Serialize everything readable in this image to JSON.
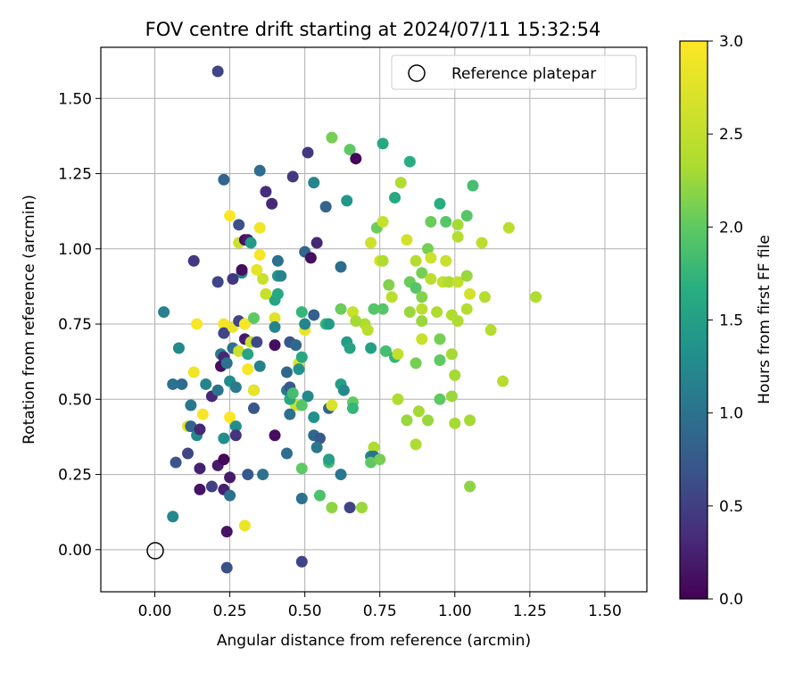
{
  "chart_data": {
    "type": "scatter",
    "title": "FOV centre drift starting at 2024/07/11 15:32:54",
    "xlabel": "Angular distance from reference (arcmin)",
    "ylabel": "Rotation from reference (arcmin)",
    "xlim": [
      -0.18,
      1.64
    ],
    "ylim": [
      -0.14,
      1.67
    ],
    "x_ticks": [
      "0.00",
      "0.25",
      "0.50",
      "0.75",
      "1.00",
      "1.25",
      "1.50"
    ],
    "y_ticks": [
      "0.00",
      "0.25",
      "0.50",
      "0.75",
      "1.00",
      "1.25",
      "1.50"
    ],
    "grid": true,
    "legend": {
      "position": "top-right",
      "label": "Reference platepar"
    },
    "reference_point": {
      "x": 0.0,
      "y": 0.0
    },
    "colorbar": {
      "label": "Hours from first FF file",
      "range": [
        0.0,
        3.0
      ],
      "ticks": [
        "0.0",
        "0.5",
        "1.0",
        "1.5",
        "2.0",
        "2.5",
        "3.0"
      ],
      "colormap": "viridis"
    },
    "points": [
      {
        "x": 0.21,
        "y": 1.59,
        "h": 0.55
      },
      {
        "x": 0.23,
        "y": 1.23,
        "h": 0.85
      },
      {
        "x": 0.35,
        "y": 1.26,
        "h": 0.95
      },
      {
        "x": 0.46,
        "y": 1.24,
        "h": 0.45
      },
      {
        "x": 0.51,
        "y": 1.32,
        "h": 0.45
      },
      {
        "x": 0.53,
        "y": 1.22,
        "h": 1.2
      },
      {
        "x": 0.37,
        "y": 1.19,
        "h": 0.35
      },
      {
        "x": 0.39,
        "y": 1.15,
        "h": 0.3
      },
      {
        "x": 0.57,
        "y": 1.14,
        "h": 0.85
      },
      {
        "x": 0.64,
        "y": 1.16,
        "h": 1.4
      },
      {
        "x": 0.59,
        "y": 1.37,
        "h": 2.1
      },
      {
        "x": 0.65,
        "y": 1.33,
        "h": 2.0
      },
      {
        "x": 0.67,
        "y": 1.3,
        "h": 0.05
      },
      {
        "x": 0.76,
        "y": 1.35,
        "h": 1.6
      },
      {
        "x": 0.85,
        "y": 1.29,
        "h": 1.65
      },
      {
        "x": 0.8,
        "y": 1.17,
        "h": 1.6
      },
      {
        "x": 0.82,
        "y": 1.22,
        "h": 2.35
      },
      {
        "x": 0.95,
        "y": 1.15,
        "h": 1.65
      },
      {
        "x": 1.06,
        "y": 1.21,
        "h": 1.85
      },
      {
        "x": 0.74,
        "y": 1.07,
        "h": 2.05
      },
      {
        "x": 0.76,
        "y": 1.09,
        "h": 2.55
      },
      {
        "x": 0.72,
        "y": 1.02,
        "h": 2.6
      },
      {
        "x": 0.84,
        "y": 1.03,
        "h": 2.65
      },
      {
        "x": 0.92,
        "y": 1.09,
        "h": 2.05
      },
      {
        "x": 0.97,
        "y": 1.09,
        "h": 1.95
      },
      {
        "x": 1.01,
        "y": 1.08,
        "h": 2.3
      },
      {
        "x": 1.04,
        "y": 1.11,
        "h": 1.95
      },
      {
        "x": 1.01,
        "y": 1.04,
        "h": 2.4
      },
      {
        "x": 1.09,
        "y": 1.02,
        "h": 2.45
      },
      {
        "x": 1.18,
        "y": 1.07,
        "h": 2.45
      },
      {
        "x": 0.91,
        "y": 1.0,
        "h": 2.1
      },
      {
        "x": 0.92,
        "y": 0.97,
        "h": 2.6
      },
      {
        "x": 0.97,
        "y": 0.96,
        "h": 2.55
      },
      {
        "x": 0.87,
        "y": 0.96,
        "h": 2.4
      },
      {
        "x": 0.75,
        "y": 0.96,
        "h": 2.7
      },
      {
        "x": 0.76,
        "y": 0.96,
        "h": 2.35
      },
      {
        "x": 0.89,
        "y": 0.92,
        "h": 2.1
      },
      {
        "x": 0.92,
        "y": 0.9,
        "h": 2.45
      },
      {
        "x": 0.96,
        "y": 0.89,
        "h": 2.5
      },
      {
        "x": 0.98,
        "y": 0.89,
        "h": 2.35
      },
      {
        "x": 1.01,
        "y": 0.89,
        "h": 2.5
      },
      {
        "x": 1.04,
        "y": 0.91,
        "h": 2.25
      },
      {
        "x": 0.85,
        "y": 0.89,
        "h": 2.05
      },
      {
        "x": 0.78,
        "y": 0.88,
        "h": 2.15
      },
      {
        "x": 0.87,
        "y": 0.87,
        "h": 1.95
      },
      {
        "x": 0.89,
        "y": 0.84,
        "h": 2.15
      },
      {
        "x": 0.79,
        "y": 0.84,
        "h": 2.45
      },
      {
        "x": 1.05,
        "y": 0.85,
        "h": 2.65
      },
      {
        "x": 1.1,
        "y": 0.84,
        "h": 2.4
      },
      {
        "x": 1.27,
        "y": 0.84,
        "h": 2.35
      },
      {
        "x": 0.89,
        "y": 0.8,
        "h": 2.45
      },
      {
        "x": 0.85,
        "y": 0.79,
        "h": 2.25
      },
      {
        "x": 0.94,
        "y": 0.79,
        "h": 2.35
      },
      {
        "x": 0.99,
        "y": 0.78,
        "h": 2.35
      },
      {
        "x": 1.01,
        "y": 0.76,
        "h": 2.35
      },
      {
        "x": 1.04,
        "y": 0.8,
        "h": 2.4
      },
      {
        "x": 0.62,
        "y": 0.8,
        "h": 2.05
      },
      {
        "x": 0.66,
        "y": 0.79,
        "h": 2.55
      },
      {
        "x": 0.73,
        "y": 0.8,
        "h": 1.95
      },
      {
        "x": 0.76,
        "y": 0.8,
        "h": 1.95
      },
      {
        "x": 0.7,
        "y": 0.75,
        "h": 2.35
      },
      {
        "x": 0.71,
        "y": 0.73,
        "h": 2.45
      },
      {
        "x": 0.67,
        "y": 0.76,
        "h": 2.3
      },
      {
        "x": 0.57,
        "y": 0.75,
        "h": 1.75
      },
      {
        "x": 0.58,
        "y": 0.75,
        "h": 1.45
      },
      {
        "x": 0.49,
        "y": 0.79,
        "h": 1.75
      },
      {
        "x": 0.53,
        "y": 0.78,
        "h": 0.8
      },
      {
        "x": 0.89,
        "y": 0.76,
        "h": 2.25
      },
      {
        "x": 1.12,
        "y": 0.73,
        "h": 2.4
      },
      {
        "x": 0.89,
        "y": 0.7,
        "h": 2.55
      },
      {
        "x": 0.95,
        "y": 0.7,
        "h": 2.1
      },
      {
        "x": 0.64,
        "y": 0.69,
        "h": 1.45
      },
      {
        "x": 0.65,
        "y": 0.67,
        "h": 1.55
      },
      {
        "x": 0.72,
        "y": 0.67,
        "h": 1.5
      },
      {
        "x": 0.77,
        "y": 0.66,
        "h": 1.85
      },
      {
        "x": 0.8,
        "y": 0.64,
        "h": 1.75
      },
      {
        "x": 0.81,
        "y": 0.65,
        "h": 2.5
      },
      {
        "x": 0.99,
        "y": 0.65,
        "h": 2.3
      },
      {
        "x": 0.95,
        "y": 0.63,
        "h": 2.0
      },
      {
        "x": 0.87,
        "y": 0.62,
        "h": 2.1
      },
      {
        "x": 1.0,
        "y": 0.58,
        "h": 2.3
      },
      {
        "x": 1.16,
        "y": 0.56,
        "h": 2.4
      },
      {
        "x": 0.99,
        "y": 0.51,
        "h": 2.25
      },
      {
        "x": 0.95,
        "y": 0.5,
        "h": 2.0
      },
      {
        "x": 0.81,
        "y": 0.5,
        "h": 2.35
      },
      {
        "x": 0.66,
        "y": 0.49,
        "h": 2.0
      },
      {
        "x": 0.66,
        "y": 0.47,
        "h": 1.75
      },
      {
        "x": 0.84,
        "y": 0.43,
        "h": 2.25
      },
      {
        "x": 0.88,
        "y": 0.46,
        "h": 2.3
      },
      {
        "x": 0.91,
        "y": 0.43,
        "h": 2.25
      },
      {
        "x": 1.0,
        "y": 0.42,
        "h": 2.3
      },
      {
        "x": 1.05,
        "y": 0.43,
        "h": 2.3
      },
      {
        "x": 0.87,
        "y": 0.35,
        "h": 2.35
      },
      {
        "x": 0.73,
        "y": 0.34,
        "h": 2.35
      },
      {
        "x": 0.72,
        "y": 0.31,
        "h": 1.25
      },
      {
        "x": 0.73,
        "y": 0.31,
        "h": 1.0
      },
      {
        "x": 0.72,
        "y": 0.29,
        "h": 2.0
      },
      {
        "x": 0.75,
        "y": 0.3,
        "h": 2.1
      },
      {
        "x": 1.05,
        "y": 0.21,
        "h": 2.2
      },
      {
        "x": 0.62,
        "y": 0.55,
        "h": 1.5
      },
      {
        "x": 0.63,
        "y": 0.53,
        "h": 1.25
      },
      {
        "x": 0.58,
        "y": 0.47,
        "h": 0.85
      },
      {
        "x": 0.59,
        "y": 0.48,
        "h": 2.7
      },
      {
        "x": 0.51,
        "y": 0.51,
        "h": 1.25
      },
      {
        "x": 0.53,
        "y": 0.44,
        "h": 1.35
      },
      {
        "x": 0.47,
        "y": 0.48,
        "h": 2.55
      },
      {
        "x": 0.49,
        "y": 0.48,
        "h": 1.95
      },
      {
        "x": 0.53,
        "y": 0.38,
        "h": 0.9
      },
      {
        "x": 0.55,
        "y": 0.37,
        "h": 0.75
      },
      {
        "x": 0.54,
        "y": 0.34,
        "h": 1.05
      },
      {
        "x": 0.49,
        "y": 0.27,
        "h": 2.0
      },
      {
        "x": 0.58,
        "y": 0.29,
        "h": 1.85
      },
      {
        "x": 0.58,
        "y": 0.3,
        "h": 1.5
      },
      {
        "x": 0.62,
        "y": 0.25,
        "h": 1.05
      },
      {
        "x": 0.49,
        "y": 0.17,
        "h": 1.0
      },
      {
        "x": 0.55,
        "y": 0.18,
        "h": 1.9
      },
      {
        "x": 0.59,
        "y": 0.14,
        "h": 2.2
      },
      {
        "x": 0.65,
        "y": 0.14,
        "h": 0.55
      },
      {
        "x": 0.69,
        "y": 0.14,
        "h": 2.25
      },
      {
        "x": 0.49,
        "y": -0.04,
        "h": 0.55
      },
      {
        "x": 0.44,
        "y": 0.32,
        "h": 0.95
      },
      {
        "x": 0.4,
        "y": 0.38,
        "h": 0.1
      },
      {
        "x": 0.44,
        "y": 0.53,
        "h": 1.1
      },
      {
        "x": 0.45,
        "y": 0.54,
        "h": 0.75
      },
      {
        "x": 0.45,
        "y": 0.45,
        "h": 1.0
      },
      {
        "x": 0.45,
        "y": 0.5,
        "h": 1.6
      },
      {
        "x": 0.46,
        "y": 0.52,
        "h": 1.85
      },
      {
        "x": 0.44,
        "y": 0.59,
        "h": 0.9
      },
      {
        "x": 0.45,
        "y": 0.69,
        "h": 0.7
      },
      {
        "x": 0.47,
        "y": 0.68,
        "h": 0.9
      },
      {
        "x": 0.48,
        "y": 0.62,
        "h": 2.7
      },
      {
        "x": 0.48,
        "y": 0.6,
        "h": 1.35
      },
      {
        "x": 0.49,
        "y": 0.64,
        "h": 1.6
      },
      {
        "x": 0.5,
        "y": 0.73,
        "h": 2.85
      },
      {
        "x": 0.5,
        "y": 0.75,
        "h": 1.2
      },
      {
        "x": 0.4,
        "y": 0.77,
        "h": 2.75
      },
      {
        "x": 0.4,
        "y": 0.74,
        "h": 1.2
      },
      {
        "x": 0.4,
        "y": 0.68,
        "h": 0.1
      },
      {
        "x": 0.4,
        "y": 0.83,
        "h": 1.55
      },
      {
        "x": 0.41,
        "y": 0.85,
        "h": 1.6
      },
      {
        "x": 0.37,
        "y": 0.85,
        "h": 2.55
      },
      {
        "x": 0.36,
        "y": 0.9,
        "h": 2.55
      },
      {
        "x": 0.34,
        "y": 0.93,
        "h": 2.8
      },
      {
        "x": 0.35,
        "y": 0.98,
        "h": 2.95
      },
      {
        "x": 0.29,
        "y": 0.92,
        "h": 1.25
      },
      {
        "x": 0.29,
        "y": 0.93,
        "h": 0.1
      },
      {
        "x": 0.26,
        "y": 0.9,
        "h": 0.45
      },
      {
        "x": 0.21,
        "y": 0.89,
        "h": 0.55
      },
      {
        "x": 0.13,
        "y": 0.96,
        "h": 0.45
      },
      {
        "x": 0.41,
        "y": 0.96,
        "h": 1.0
      },
      {
        "x": 0.41,
        "y": 0.91,
        "h": 1.4
      },
      {
        "x": 0.42,
        "y": 0.91,
        "h": 1.2
      },
      {
        "x": 0.5,
        "y": 0.99,
        "h": 0.9
      },
      {
        "x": 0.52,
        "y": 0.97,
        "h": 0.1
      },
      {
        "x": 0.54,
        "y": 1.02,
        "h": 0.3
      },
      {
        "x": 0.62,
        "y": 0.94,
        "h": 0.95
      },
      {
        "x": 0.25,
        "y": 1.11,
        "h": 3.0
      },
      {
        "x": 0.28,
        "y": 1.08,
        "h": 0.65
      },
      {
        "x": 0.28,
        "y": 1.02,
        "h": 2.6
      },
      {
        "x": 0.3,
        "y": 1.03,
        "h": 0.1
      },
      {
        "x": 0.31,
        "y": 1.03,
        "h": 0.2
      },
      {
        "x": 0.32,
        "y": 1.02,
        "h": 1.45
      },
      {
        "x": 0.35,
        "y": 1.07,
        "h": 2.9
      },
      {
        "x": 0.03,
        "y": 0.79,
        "h": 1.15
      },
      {
        "x": 0.14,
        "y": 0.75,
        "h": 2.95
      },
      {
        "x": 0.23,
        "y": 0.75,
        "h": 2.95
      },
      {
        "x": 0.23,
        "y": 0.72,
        "h": 0.55
      },
      {
        "x": 0.26,
        "y": 0.74,
        "h": 2.85
      },
      {
        "x": 0.28,
        "y": 0.76,
        "h": 0.55
      },
      {
        "x": 0.3,
        "y": 0.75,
        "h": 2.95
      },
      {
        "x": 0.33,
        "y": 0.77,
        "h": 2.0
      },
      {
        "x": 0.08,
        "y": 0.67,
        "h": 1.25
      },
      {
        "x": 0.22,
        "y": 0.65,
        "h": 1.1
      },
      {
        "x": 0.22,
        "y": 0.61,
        "h": 0.1
      },
      {
        "x": 0.23,
        "y": 0.64,
        "h": 0.3
      },
      {
        "x": 0.24,
        "y": 0.62,
        "h": 1.0
      },
      {
        "x": 0.26,
        "y": 0.67,
        "h": 1.0
      },
      {
        "x": 0.28,
        "y": 0.66,
        "h": 2.6
      },
      {
        "x": 0.3,
        "y": 0.7,
        "h": 0.2
      },
      {
        "x": 0.31,
        "y": 0.65,
        "h": 1.55
      },
      {
        "x": 0.32,
        "y": 0.69,
        "h": 2.55
      },
      {
        "x": 0.34,
        "y": 0.69,
        "h": 0.6
      },
      {
        "x": 0.35,
        "y": 0.61,
        "h": 1.15
      },
      {
        "x": 0.31,
        "y": 0.6,
        "h": 2.95
      },
      {
        "x": 0.13,
        "y": 0.59,
        "h": 2.9
      },
      {
        "x": 0.06,
        "y": 0.55,
        "h": 1.0
      },
      {
        "x": 0.09,
        "y": 0.55,
        "h": 0.95
      },
      {
        "x": 0.17,
        "y": 0.55,
        "h": 1.2
      },
      {
        "x": 0.19,
        "y": 0.51,
        "h": 0.3
      },
      {
        "x": 0.21,
        "y": 0.53,
        "h": 1.0
      },
      {
        "x": 0.25,
        "y": 0.56,
        "h": 1.3
      },
      {
        "x": 0.27,
        "y": 0.54,
        "h": 1.1
      },
      {
        "x": 0.33,
        "y": 0.53,
        "h": 1.6
      },
      {
        "x": 0.33,
        "y": 0.53,
        "h": 2.8
      },
      {
        "x": 0.33,
        "y": 0.47,
        "h": 0.7
      },
      {
        "x": 0.12,
        "y": 0.48,
        "h": 1.05
      },
      {
        "x": 0.16,
        "y": 0.45,
        "h": 2.95
      },
      {
        "x": 0.11,
        "y": 0.41,
        "h": 2.75
      },
      {
        "x": 0.12,
        "y": 0.41,
        "h": 0.85
      },
      {
        "x": 0.14,
        "y": 0.38,
        "h": 1.25
      },
      {
        "x": 0.15,
        "y": 0.4,
        "h": 0.3
      },
      {
        "x": 0.25,
        "y": 0.44,
        "h": 3.0
      },
      {
        "x": 0.27,
        "y": 0.41,
        "h": 1.3
      },
      {
        "x": 0.23,
        "y": 0.37,
        "h": 1.3
      },
      {
        "x": 0.27,
        "y": 0.38,
        "h": 0.4
      },
      {
        "x": 0.07,
        "y": 0.29,
        "h": 0.7
      },
      {
        "x": 0.11,
        "y": 0.32,
        "h": 0.55
      },
      {
        "x": 0.15,
        "y": 0.27,
        "h": 0.25
      },
      {
        "x": 0.21,
        "y": 0.28,
        "h": 0.2
      },
      {
        "x": 0.23,
        "y": 0.3,
        "h": 0.05
      },
      {
        "x": 0.15,
        "y": 0.2,
        "h": 0.15
      },
      {
        "x": 0.19,
        "y": 0.21,
        "h": 0.5
      },
      {
        "x": 0.23,
        "y": 0.2,
        "h": 0.25
      },
      {
        "x": 0.25,
        "y": 0.24,
        "h": 0.2
      },
      {
        "x": 0.25,
        "y": 0.18,
        "h": 1.0
      },
      {
        "x": 0.31,
        "y": 0.25,
        "h": 0.75
      },
      {
        "x": 0.36,
        "y": 0.25,
        "h": 1.0
      },
      {
        "x": 0.06,
        "y": 0.11,
        "h": 1.25
      },
      {
        "x": 0.3,
        "y": 0.08,
        "h": 2.85
      },
      {
        "x": 0.24,
        "y": 0.06,
        "h": 0.15
      },
      {
        "x": 0.24,
        "y": -0.06,
        "h": 0.65
      }
    ]
  }
}
